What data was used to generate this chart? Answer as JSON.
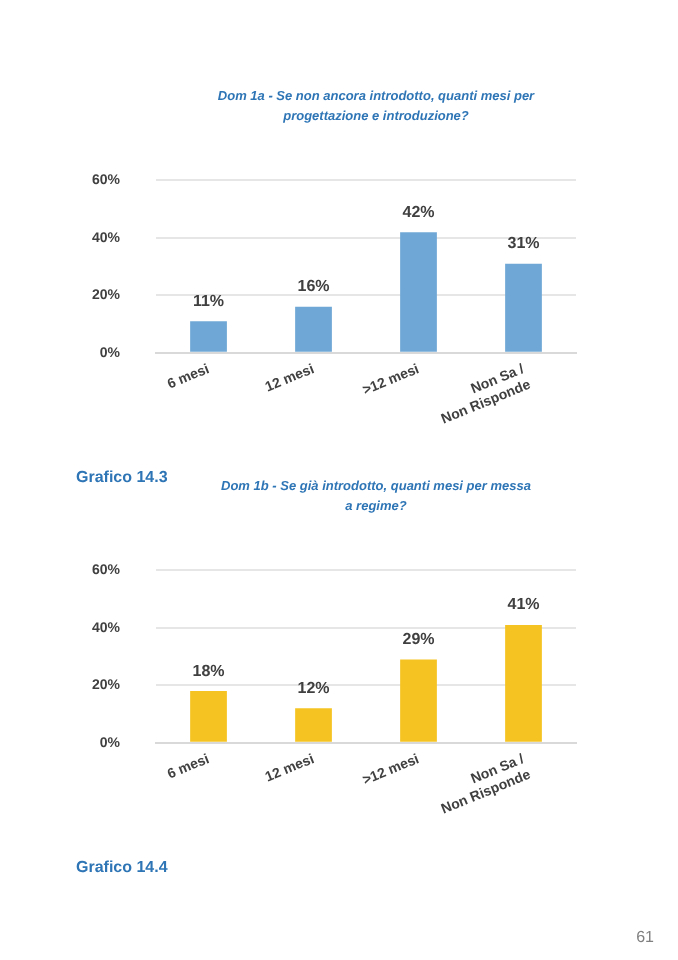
{
  "chart_data": [
    {
      "type": "bar",
      "title": "Dom 1a - Se non ancora introdotto, quanti mesi per progettazione e introduzione?",
      "categories": [
        "6 mesi",
        "12 mesi",
        ">12 mesi",
        "Non Sa / Non Risponde"
      ],
      "values": [
        11,
        16,
        42,
        31
      ],
      "value_labels": [
        "11%",
        "16%",
        "42%",
        "31%"
      ],
      "color": "#6fa8d6",
      "ylim": [
        0,
        60
      ],
      "yticks": [
        {
          "value": 0,
          "label": "0%"
        },
        {
          "value": 20,
          "label": "20%"
        },
        {
          "value": 40,
          "label": "40%"
        },
        {
          "value": 60,
          "label": "60%"
        }
      ],
      "grid": "y",
      "legend": false,
      "annotations": [
        "Grafico 14.3"
      ]
    },
    {
      "type": "bar",
      "title": "Dom 1b - Se già introdotto, quanti mesi per messa a regime?",
      "categories": [
        "6 mesi",
        "12 mesi",
        ">12 mesi",
        "Non Sa / Non Risponde"
      ],
      "values": [
        18,
        12,
        29,
        41
      ],
      "value_labels": [
        "18%",
        "12%",
        "29%",
        "41%"
      ],
      "color": "#f5c423",
      "ylim": [
        0,
        60
      ],
      "yticks": [
        {
          "value": 0,
          "label": "0%"
        },
        {
          "value": 20,
          "label": "20%"
        },
        {
          "value": 40,
          "label": "40%"
        },
        {
          "value": 60,
          "label": "60%"
        }
      ],
      "grid": "y",
      "legend": false,
      "annotations": [
        "Grafico 14.4",
        "61"
      ]
    }
  ]
}
